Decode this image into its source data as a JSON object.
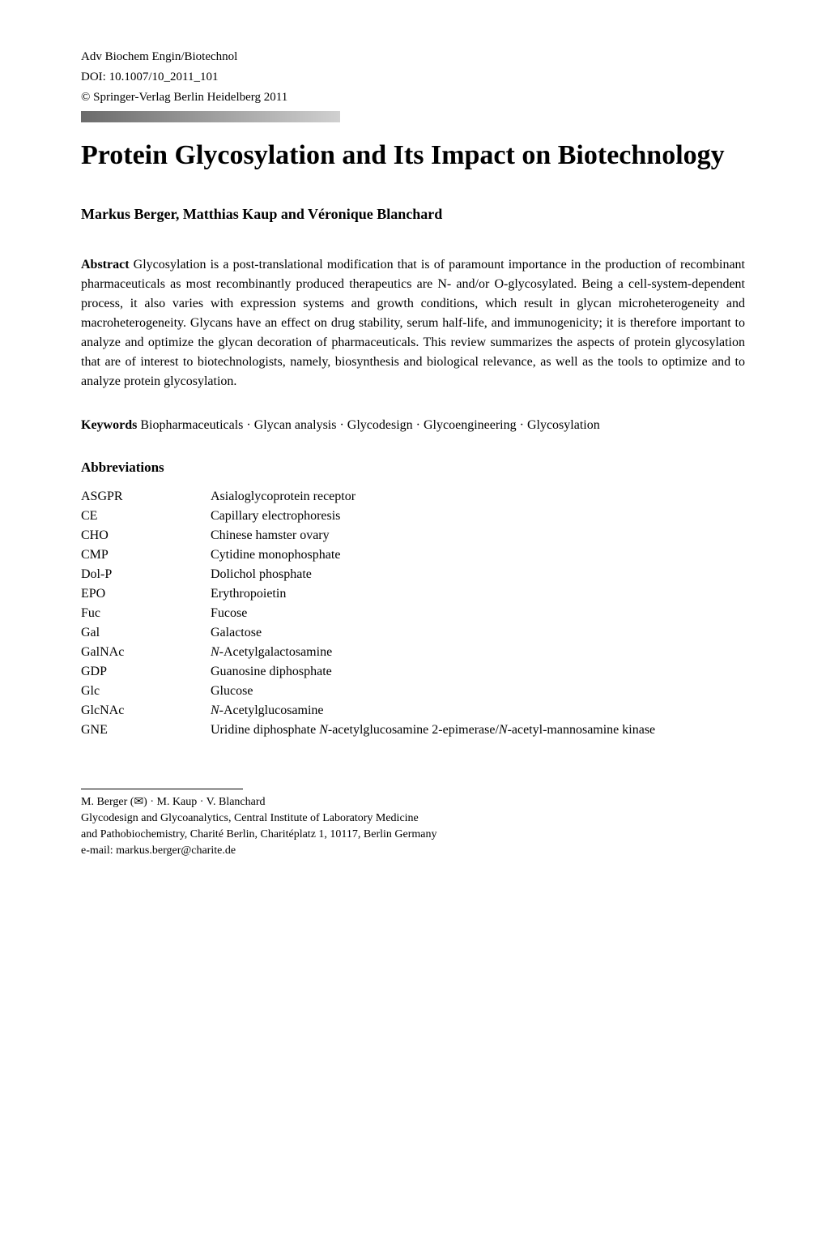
{
  "header": {
    "journal": "Adv Biochem Engin/Biotechnol",
    "doi": "DOI: 10.1007/10_2011_101",
    "copyright": "© Springer-Verlag Berlin Heidelberg  2011"
  },
  "title": "Protein Glycosylation and Its Impact on Biotechnology",
  "authors": "Markus Berger, Matthias Kaup and Véronique Blanchard",
  "abstract": {
    "label": "Abstract",
    "text": "  Glycosylation is a post-translational modification that is of paramount importance in the production of recombinant pharmaceuticals as most recombinantly produced therapeutics are N- and/or O-glycosylated. Being a cell-system-dependent process, it also varies with expression systems and growth conditions, which result in glycan microheterogeneity and macroheterogeneity. Glycans have an effect on drug stability, serum half-life, and immunogenicity; it is therefore important to analyze and optimize the glycan decoration of pharmaceuticals. This review summarizes the aspects of protein glycosylation that are of interest to biotechnologists, namely, biosynthesis and biological relevance, as well as the tools to optimize and to analyze protein glycosylation."
  },
  "keywords": {
    "label": "Keywords",
    "text": "  Biopharmaceuticals · Glycan analysis · Glycodesign · Glycoengineering · Glycosylation"
  },
  "abbreviations": {
    "heading": "Abbreviations",
    "items": [
      {
        "abbr": "ASGPR",
        "def": "Asialoglycoprotein receptor"
      },
      {
        "abbr": "CE",
        "def": "Capillary electrophoresis"
      },
      {
        "abbr": "CHO",
        "def": "Chinese hamster ovary"
      },
      {
        "abbr": "CMP",
        "def": "Cytidine monophosphate"
      },
      {
        "abbr": "Dol-P",
        "def": "Dolichol phosphate"
      },
      {
        "abbr": "EPO",
        "def": "Erythropoietin"
      },
      {
        "abbr": "Fuc",
        "def": "Fucose"
      },
      {
        "abbr": "Gal",
        "def": "Galactose"
      },
      {
        "abbr": "GalNAc",
        "def_prefix_italic": "N",
        "def_rest": "-Acetylgalactosamine"
      },
      {
        "abbr": "GDP",
        "def": "Guanosine diphosphate"
      },
      {
        "abbr": "Glc",
        "def": "Glucose"
      },
      {
        "abbr": "GlcNAc",
        "def_prefix_italic": "N",
        "def_rest": "-Acetylglucosamine"
      },
      {
        "abbr": "GNE",
        "def_pre": "Uridine diphosphate ",
        "def_italic1": "N",
        "def_mid": "-acetylglucosamine 2-epimerase/",
        "def_italic2": "N",
        "def_post": "-acetyl-mannosamine kinase"
      }
    ]
  },
  "footer": {
    "correspondence": "M. Berger (✉) · M. Kaup · V. Blanchard",
    "affiliation1": "Glycodesign and Glycoanalytics, Central Institute of Laboratory Medicine",
    "affiliation2": "and Pathobiochemistry, Charité Berlin, Charitéplatz 1, 10117, Berlin Germany",
    "email": "e-mail: markus.berger@charite.de"
  }
}
